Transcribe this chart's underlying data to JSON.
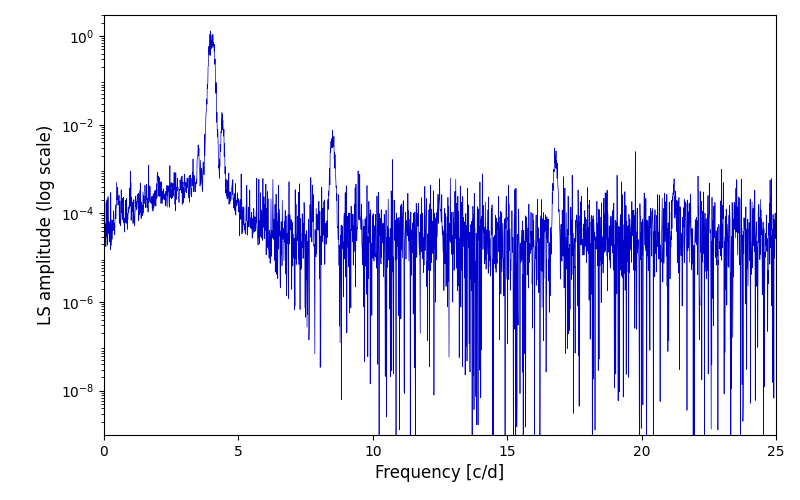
{
  "xlabel": "Frequency [c/d]",
  "ylabel": "LS amplitude (log scale)",
  "xlim": [
    0,
    25
  ],
  "ylim": [
    1e-09,
    3.0
  ],
  "yticks": [
    1e-08,
    1e-06,
    0.0001,
    0.01,
    1.0
  ],
  "xticks": [
    0,
    5,
    10,
    15,
    20,
    25
  ],
  "line_color": "#0000CC",
  "line_width": 0.5,
  "background_color": "#ffffff",
  "figsize": [
    8.0,
    5.0
  ],
  "dpi": 100,
  "seed": 77
}
